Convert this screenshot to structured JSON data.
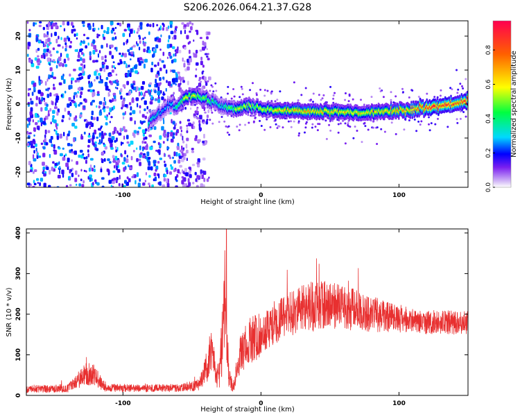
{
  "figure": {
    "title": "S206.2026.064.21.37.G28"
  },
  "chart_data": [
    {
      "type": "heatmap",
      "name": "spectrogram",
      "xlabel": "Height of straight line (km)",
      "ylabel": "Frequency (Hz)",
      "xlim": [
        -170,
        150
      ],
      "ylim": [
        -24.5,
        24.5
      ],
      "x_ticks": [
        -100,
        0,
        100
      ],
      "y_ticks": [
        -20,
        -10,
        0,
        10,
        20
      ],
      "colorbar": {
        "label": "Normalized spectral amplitude",
        "range": [
          0,
          0.97
        ],
        "ticks": [
          0.0,
          0.2,
          0.4,
          0.6,
          0.8
        ],
        "colors": [
          "#ffffff",
          "#d9c4f7",
          "#7a1ff0",
          "#0000ff",
          "#00d8ff",
          "#00ff40",
          "#ffff00",
          "#ff6000",
          "#ff0050"
        ]
      },
      "ridge": {
        "x": [
          -82,
          -79,
          -75,
          -70,
          -66,
          -62,
          -58,
          -55,
          -50,
          -45,
          -40,
          -35,
          -32,
          -28,
          -24,
          -20,
          -15,
          -10,
          -5,
          0,
          5,
          10,
          20,
          30,
          40,
          50,
          60,
          70,
          80,
          90,
          100,
          110,
          120,
          130,
          140,
          150
        ],
        "y": [
          -6,
          -4,
          -3,
          -1.5,
          0,
          -1,
          1,
          2,
          2.5,
          2,
          1.5,
          0.5,
          0,
          -0.5,
          -1,
          -1.5,
          -1,
          -0.5,
          -1,
          -1.2,
          -1.8,
          -2,
          -2,
          -2,
          -2.2,
          -2.2,
          -2.5,
          -2.5,
          -2.5,
          -2.2,
          -2,
          -1.5,
          -1,
          -0.5,
          0.3,
          1.2
        ],
        "amplitude": [
          0.35,
          0.3,
          0.3,
          0.25,
          0.3,
          0.35,
          0.45,
          0.55,
          0.55,
          0.5,
          0.45,
          0.4,
          0.35,
          0.35,
          0.45,
          0.5,
          0.55,
          0.5,
          0.5,
          0.5,
          0.55,
          0.6,
          0.65,
          0.65,
          0.65,
          0.65,
          0.6,
          0.6,
          0.6,
          0.6,
          0.7,
          0.75,
          0.85,
          0.9,
          0.85,
          0.8
        ]
      },
      "noise_region": {
        "x_range": [
          -170,
          -50
        ],
        "amplitude_range": [
          0.05,
          0.3
        ]
      }
    },
    {
      "type": "line",
      "name": "snr",
      "xlabel": "Height of straight line (km)",
      "ylabel": "SNR (10 * v/v)",
      "xlim": [
        -170,
        150
      ],
      "ylim": [
        0,
        410
      ],
      "x_ticks": [
        -100,
        0,
        100
      ],
      "y_ticks": [
        0,
        100,
        200,
        300,
        400
      ],
      "color": "#e83030",
      "envelope": {
        "x": [
          -170,
          -140,
          -135,
          -130,
          -125,
          -120,
          -115,
          -110,
          -80,
          -60,
          -45,
          -40,
          -38,
          -36,
          -34,
          -32,
          -30,
          -28,
          -26,
          -25,
          -23,
          -20,
          -15,
          -10,
          -5,
          0,
          5,
          10,
          20,
          30,
          40,
          50,
          60,
          70,
          80,
          90,
          100,
          110,
          120,
          130,
          140,
          150
        ],
        "mean": [
          15,
          18,
          30,
          45,
          55,
          50,
          25,
          18,
          18,
          18,
          25,
          60,
          90,
          110,
          80,
          40,
          60,
          130,
          260,
          160,
          40,
          20,
          100,
          130,
          140,
          150,
          170,
          180,
          200,
          215,
          220,
          225,
          215,
          210,
          200,
          195,
          190,
          185,
          180,
          180,
          180,
          180
        ],
        "noise": [
          10,
          10,
          15,
          25,
          30,
          25,
          15,
          10,
          10,
          10,
          15,
          35,
          50,
          60,
          45,
          25,
          40,
          90,
          150,
          100,
          25,
          15,
          50,
          55,
          60,
          55,
          55,
          55,
          55,
          60,
          65,
          60,
          55,
          50,
          45,
          40,
          35,
          30,
          30,
          30,
          30,
          30
        ]
      },
      "peak": {
        "x": -25,
        "y": 410
      }
    }
  ]
}
